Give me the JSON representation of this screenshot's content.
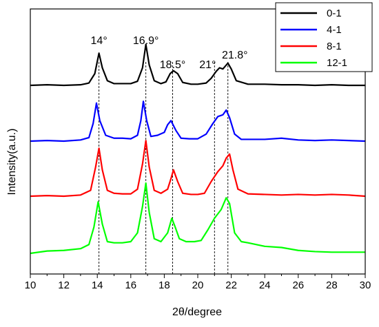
{
  "chart_data": {
    "type": "line",
    "xlabel": "2θ/degree",
    "ylabel": "Intensity(a.u.)",
    "xlim": [
      10,
      30
    ],
    "x_ticks": [
      "10",
      "12",
      "14",
      "16",
      "18",
      "20",
      "22",
      "24",
      "26",
      "28",
      "30"
    ],
    "grid": false,
    "legend_position": "top-right",
    "stacked_offset": true,
    "reference_lines": [
      14.1,
      16.9,
      18.5,
      21.0,
      21.8
    ],
    "peak_labels": [
      {
        "text": "14°",
        "x": 14.1
      },
      {
        "text": "16.9°",
        "x": 16.9
      },
      {
        "text": "18.5°",
        "x": 18.5
      },
      {
        "text": "21°",
        "x": 21.0
      },
      {
        "text": "21.8°",
        "x": 21.8
      }
    ],
    "series": [
      {
        "name": "0-1",
        "color": "#000000",
        "points": [
          [
            10,
            0
          ],
          [
            11,
            0.01
          ],
          [
            12,
            0
          ],
          [
            13,
            0.01
          ],
          [
            13.5,
            0.04
          ],
          [
            13.85,
            0.2
          ],
          [
            14.1,
            0.55
          ],
          [
            14.3,
            0.3
          ],
          [
            14.6,
            0.08
          ],
          [
            15,
            0.03
          ],
          [
            15.5,
            0.03
          ],
          [
            16,
            0.03
          ],
          [
            16.4,
            0.07
          ],
          [
            16.7,
            0.3
          ],
          [
            16.9,
            0.7
          ],
          [
            17.1,
            0.35
          ],
          [
            17.4,
            0.08
          ],
          [
            17.8,
            0.03
          ],
          [
            18.1,
            0.06
          ],
          [
            18.35,
            0.2
          ],
          [
            18.55,
            0.25
          ],
          [
            18.8,
            0.2
          ],
          [
            19.1,
            0.05
          ],
          [
            19.6,
            0.02
          ],
          [
            20,
            0.02
          ],
          [
            20.5,
            0.04
          ],
          [
            20.8,
            0.12
          ],
          [
            21.1,
            0.24
          ],
          [
            21.3,
            0.3
          ],
          [
            21.5,
            0.28
          ],
          [
            21.8,
            0.38
          ],
          [
            22,
            0.28
          ],
          [
            22.3,
            0.08
          ],
          [
            23,
            0.02
          ],
          [
            24,
            0.02
          ],
          [
            25,
            0.01
          ],
          [
            26,
            0.01
          ],
          [
            27,
            0
          ],
          [
            28,
            0.01
          ],
          [
            29,
            0
          ],
          [
            30,
            0
          ]
        ]
      },
      {
        "name": "4-1",
        "color": "#0000ff",
        "points": [
          [
            10,
            0
          ],
          [
            11,
            0.01
          ],
          [
            12,
            0
          ],
          [
            13,
            0.02
          ],
          [
            13.5,
            0.06
          ],
          [
            13.75,
            0.3
          ],
          [
            13.95,
            0.65
          ],
          [
            14.15,
            0.35
          ],
          [
            14.5,
            0.1
          ],
          [
            15,
            0.05
          ],
          [
            15.5,
            0.05
          ],
          [
            16,
            0.04
          ],
          [
            16.4,
            0.1
          ],
          [
            16.6,
            0.35
          ],
          [
            16.75,
            0.68
          ],
          [
            16.95,
            0.35
          ],
          [
            17.2,
            0.08
          ],
          [
            17.6,
            0.1
          ],
          [
            18,
            0.15
          ],
          [
            18.2,
            0.28
          ],
          [
            18.4,
            0.35
          ],
          [
            18.7,
            0.18
          ],
          [
            19,
            0.05
          ],
          [
            19.5,
            0.04
          ],
          [
            20,
            0.04
          ],
          [
            20.5,
            0.12
          ],
          [
            20.9,
            0.3
          ],
          [
            21.2,
            0.42
          ],
          [
            21.5,
            0.45
          ],
          [
            21.7,
            0.53
          ],
          [
            21.9,
            0.4
          ],
          [
            22.2,
            0.12
          ],
          [
            22.6,
            0.03
          ],
          [
            23,
            0.03
          ],
          [
            24,
            0.03
          ],
          [
            25,
            0.05
          ],
          [
            26,
            0.02
          ],
          [
            27,
            0.01
          ],
          [
            28,
            0.02
          ],
          [
            29,
            0.01
          ],
          [
            30,
            0
          ]
        ]
      },
      {
        "name": "8-1",
        "color": "#ff0000",
        "points": [
          [
            10,
            0
          ],
          [
            11,
            0.01
          ],
          [
            12,
            0
          ],
          [
            13,
            0.02
          ],
          [
            13.6,
            0.1
          ],
          [
            13.9,
            0.5
          ],
          [
            14.1,
            0.82
          ],
          [
            14.3,
            0.45
          ],
          [
            14.6,
            0.1
          ],
          [
            15,
            0.05
          ],
          [
            15.5,
            0.04
          ],
          [
            16,
            0.04
          ],
          [
            16.4,
            0.12
          ],
          [
            16.7,
            0.55
          ],
          [
            16.9,
            0.95
          ],
          [
            17.1,
            0.5
          ],
          [
            17.4,
            0.1
          ],
          [
            17.8,
            0.05
          ],
          [
            18.2,
            0.12
          ],
          [
            18.4,
            0.3
          ],
          [
            18.55,
            0.45
          ],
          [
            18.8,
            0.25
          ],
          [
            19.1,
            0.05
          ],
          [
            19.6,
            0.03
          ],
          [
            20,
            0.03
          ],
          [
            20.4,
            0.05
          ],
          [
            20.8,
            0.25
          ],
          [
            21.2,
            0.42
          ],
          [
            21.5,
            0.52
          ],
          [
            21.7,
            0.65
          ],
          [
            21.9,
            0.72
          ],
          [
            22.1,
            0.45
          ],
          [
            22.4,
            0.12
          ],
          [
            23,
            0.04
          ],
          [
            24,
            0.03
          ],
          [
            25,
            0.02
          ],
          [
            26,
            0.03
          ],
          [
            27,
            0.02
          ],
          [
            28,
            0.03
          ],
          [
            29,
            0.02
          ],
          [
            30,
            0
          ]
        ]
      },
      {
        "name": "12-1",
        "color": "#00ff00",
        "points": [
          [
            10,
            0
          ],
          [
            11,
            0.04
          ],
          [
            12,
            0.05
          ],
          [
            13,
            0.08
          ],
          [
            13.5,
            0.15
          ],
          [
            13.8,
            0.45
          ],
          [
            14.05,
            0.88
          ],
          [
            14.3,
            0.5
          ],
          [
            14.6,
            0.2
          ],
          [
            15,
            0.18
          ],
          [
            15.5,
            0.18
          ],
          [
            16,
            0.2
          ],
          [
            16.4,
            0.35
          ],
          [
            16.7,
            0.8
          ],
          [
            16.9,
            1.2
          ],
          [
            17.1,
            0.7
          ],
          [
            17.4,
            0.25
          ],
          [
            17.8,
            0.2
          ],
          [
            18.2,
            0.35
          ],
          [
            18.45,
            0.6
          ],
          [
            18.65,
            0.45
          ],
          [
            18.9,
            0.25
          ],
          [
            19.3,
            0.2
          ],
          [
            19.8,
            0.2
          ],
          [
            20.2,
            0.22
          ],
          [
            20.6,
            0.4
          ],
          [
            21,
            0.6
          ],
          [
            21.4,
            0.75
          ],
          [
            21.7,
            0.95
          ],
          [
            21.9,
            0.85
          ],
          [
            22.2,
            0.35
          ],
          [
            22.6,
            0.2
          ],
          [
            23,
            0.18
          ],
          [
            24,
            0.12
          ],
          [
            25,
            0.1
          ],
          [
            26,
            0.05
          ],
          [
            27,
            0.03
          ],
          [
            28,
            0.02
          ],
          [
            29,
            0.02
          ],
          [
            30,
            0.02
          ]
        ]
      }
    ]
  }
}
